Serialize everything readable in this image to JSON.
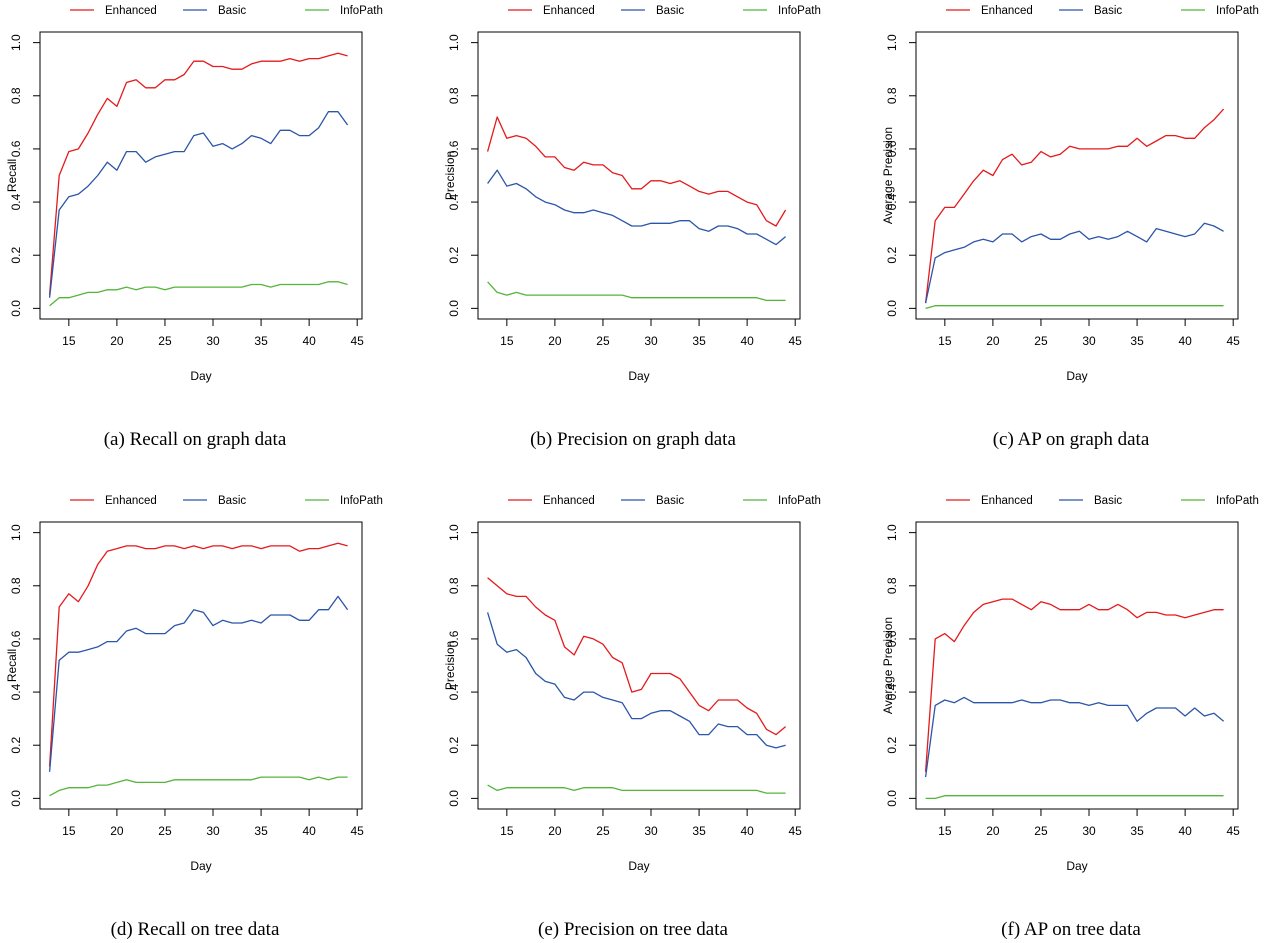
{
  "colors": {
    "Enhanced": "#e41a1c",
    "Basic": "#2b55a8",
    "InfoPath": "#55b43a",
    "axis": "#000000"
  },
  "chart_data": [
    {
      "type": "line",
      "caption": "(a) Recall on graph data",
      "xlabel": "Day",
      "ylabel": "Recall",
      "xlim": [
        13,
        44
      ],
      "ylim": [
        0,
        1
      ],
      "xticks": [
        "15",
        "20",
        "25",
        "30",
        "35",
        "40",
        "45"
      ],
      "yticks": [
        "0.0",
        "0.2",
        "0.4",
        "0.6",
        "0.8",
        "1.0"
      ],
      "legend_position": "top",
      "x": [
        13,
        14,
        15,
        16,
        17,
        18,
        19,
        20,
        21,
        22,
        23,
        24,
        25,
        26,
        27,
        28,
        29,
        30,
        31,
        32,
        33,
        34,
        35,
        36,
        37,
        38,
        39,
        40,
        41,
        42,
        43,
        44
      ],
      "series": [
        {
          "name": "Enhanced",
          "values": [
            0.05,
            0.5,
            0.59,
            0.6,
            0.66,
            0.73,
            0.79,
            0.76,
            0.85,
            0.86,
            0.83,
            0.83,
            0.86,
            0.86,
            0.88,
            0.93,
            0.93,
            0.91,
            0.91,
            0.9,
            0.9,
            0.92,
            0.93,
            0.93,
            0.93,
            0.94,
            0.93,
            0.94,
            0.94,
            0.95,
            0.96,
            0.95
          ]
        },
        {
          "name": "Basic",
          "values": [
            0.04,
            0.37,
            0.42,
            0.43,
            0.46,
            0.5,
            0.55,
            0.52,
            0.59,
            0.59,
            0.55,
            0.57,
            0.58,
            0.59,
            0.59,
            0.65,
            0.66,
            0.61,
            0.62,
            0.6,
            0.62,
            0.65,
            0.64,
            0.62,
            0.67,
            0.67,
            0.65,
            0.65,
            0.68,
            0.74,
            0.74,
            0.69
          ]
        },
        {
          "name": "InfoPath",
          "values": [
            0.01,
            0.04,
            0.04,
            0.05,
            0.06,
            0.06,
            0.07,
            0.07,
            0.08,
            0.07,
            0.08,
            0.08,
            0.07,
            0.08,
            0.08,
            0.08,
            0.08,
            0.08,
            0.08,
            0.08,
            0.08,
            0.09,
            0.09,
            0.08,
            0.09,
            0.09,
            0.09,
            0.09,
            0.09,
            0.1,
            0.1,
            0.09
          ]
        }
      ]
    },
    {
      "type": "line",
      "caption": "(b) Precision on graph data",
      "xlabel": "Day",
      "ylabel": "Precision",
      "xlim": [
        13,
        44
      ],
      "ylim": [
        0,
        1
      ],
      "xticks": [
        "15",
        "20",
        "25",
        "30",
        "35",
        "40",
        "45"
      ],
      "yticks": [
        "0.0",
        "0.2",
        "0.4",
        "0.6",
        "0.8",
        "1.0"
      ],
      "legend_position": "top",
      "x": [
        13,
        14,
        15,
        16,
        17,
        18,
        19,
        20,
        21,
        22,
        23,
        24,
        25,
        26,
        27,
        28,
        29,
        30,
        31,
        32,
        33,
        34,
        35,
        36,
        37,
        38,
        39,
        40,
        41,
        42,
        43,
        44
      ],
      "series": [
        {
          "name": "Enhanced",
          "values": [
            0.59,
            0.72,
            0.64,
            0.65,
            0.64,
            0.61,
            0.57,
            0.57,
            0.53,
            0.52,
            0.55,
            0.54,
            0.54,
            0.51,
            0.5,
            0.45,
            0.45,
            0.48,
            0.48,
            0.47,
            0.48,
            0.46,
            0.44,
            0.43,
            0.44,
            0.44,
            0.42,
            0.4,
            0.39,
            0.33,
            0.31,
            0.37
          ]
        },
        {
          "name": "Basic",
          "values": [
            0.47,
            0.52,
            0.46,
            0.47,
            0.45,
            0.42,
            0.4,
            0.39,
            0.37,
            0.36,
            0.36,
            0.37,
            0.36,
            0.35,
            0.33,
            0.31,
            0.31,
            0.32,
            0.32,
            0.32,
            0.33,
            0.33,
            0.3,
            0.29,
            0.31,
            0.31,
            0.3,
            0.28,
            0.28,
            0.26,
            0.24,
            0.27
          ]
        },
        {
          "name": "InfoPath",
          "values": [
            0.1,
            0.06,
            0.05,
            0.06,
            0.05,
            0.05,
            0.05,
            0.05,
            0.05,
            0.05,
            0.05,
            0.05,
            0.05,
            0.05,
            0.05,
            0.04,
            0.04,
            0.04,
            0.04,
            0.04,
            0.04,
            0.04,
            0.04,
            0.04,
            0.04,
            0.04,
            0.04,
            0.04,
            0.04,
            0.03,
            0.03,
            0.03
          ]
        }
      ]
    },
    {
      "type": "line",
      "caption": "(c) AP on graph data",
      "xlabel": "Day",
      "ylabel": "Average Precision",
      "xlim": [
        13,
        44
      ],
      "ylim": [
        0,
        1
      ],
      "xticks": [
        "15",
        "20",
        "25",
        "30",
        "35",
        "40",
        "45"
      ],
      "yticks": [
        "0.0",
        "0.2",
        "0.4",
        "0.6",
        "0.8",
        "1.0"
      ],
      "legend_position": "top",
      "x": [
        13,
        14,
        15,
        16,
        17,
        18,
        19,
        20,
        21,
        22,
        23,
        24,
        25,
        26,
        27,
        28,
        29,
        30,
        31,
        32,
        33,
        34,
        35,
        36,
        37,
        38,
        39,
        40,
        41,
        42,
        43,
        44
      ],
      "series": [
        {
          "name": "Enhanced",
          "values": [
            0.02,
            0.33,
            0.38,
            0.38,
            0.43,
            0.48,
            0.52,
            0.5,
            0.56,
            0.58,
            0.54,
            0.55,
            0.59,
            0.57,
            0.58,
            0.61,
            0.6,
            0.6,
            0.6,
            0.6,
            0.61,
            0.61,
            0.64,
            0.61,
            0.63,
            0.65,
            0.65,
            0.64,
            0.64,
            0.68,
            0.71,
            0.75
          ]
        },
        {
          "name": "Basic",
          "values": [
            0.02,
            0.19,
            0.21,
            0.22,
            0.23,
            0.25,
            0.26,
            0.25,
            0.28,
            0.28,
            0.25,
            0.27,
            0.28,
            0.26,
            0.26,
            0.28,
            0.29,
            0.26,
            0.27,
            0.26,
            0.27,
            0.29,
            0.27,
            0.25,
            0.3,
            0.29,
            0.28,
            0.27,
            0.28,
            0.32,
            0.31,
            0.29
          ]
        },
        {
          "name": "InfoPath",
          "values": [
            0.0,
            0.01,
            0.01,
            0.01,
            0.01,
            0.01,
            0.01,
            0.01,
            0.01,
            0.01,
            0.01,
            0.01,
            0.01,
            0.01,
            0.01,
            0.01,
            0.01,
            0.01,
            0.01,
            0.01,
            0.01,
            0.01,
            0.01,
            0.01,
            0.01,
            0.01,
            0.01,
            0.01,
            0.01,
            0.01,
            0.01,
            0.01
          ]
        }
      ]
    },
    {
      "type": "line",
      "caption": "(d) Recall on tree data",
      "xlabel": "Day",
      "ylabel": "Recall",
      "xlim": [
        13,
        44
      ],
      "ylim": [
        0,
        1
      ],
      "xticks": [
        "15",
        "20",
        "25",
        "30",
        "35",
        "40",
        "45"
      ],
      "yticks": [
        "0.0",
        "0.2",
        "0.4",
        "0.6",
        "0.8",
        "1.0"
      ],
      "legend_position": "top",
      "x": [
        13,
        14,
        15,
        16,
        17,
        18,
        19,
        20,
        21,
        22,
        23,
        24,
        25,
        26,
        27,
        28,
        29,
        30,
        31,
        32,
        33,
        34,
        35,
        36,
        37,
        38,
        39,
        40,
        41,
        42,
        43,
        44
      ],
      "series": [
        {
          "name": "Enhanced",
          "values": [
            0.12,
            0.72,
            0.77,
            0.74,
            0.8,
            0.88,
            0.93,
            0.94,
            0.95,
            0.95,
            0.94,
            0.94,
            0.95,
            0.95,
            0.94,
            0.95,
            0.94,
            0.95,
            0.95,
            0.94,
            0.95,
            0.95,
            0.94,
            0.95,
            0.95,
            0.95,
            0.93,
            0.94,
            0.94,
            0.95,
            0.96,
            0.95
          ]
        },
        {
          "name": "Basic",
          "values": [
            0.1,
            0.52,
            0.55,
            0.55,
            0.56,
            0.57,
            0.59,
            0.59,
            0.63,
            0.64,
            0.62,
            0.62,
            0.62,
            0.65,
            0.66,
            0.71,
            0.7,
            0.65,
            0.67,
            0.66,
            0.66,
            0.67,
            0.66,
            0.69,
            0.69,
            0.69,
            0.67,
            0.67,
            0.71,
            0.71,
            0.76,
            0.71
          ]
        },
        {
          "name": "InfoPath",
          "values": [
            0.01,
            0.03,
            0.04,
            0.04,
            0.04,
            0.05,
            0.05,
            0.06,
            0.07,
            0.06,
            0.06,
            0.06,
            0.06,
            0.07,
            0.07,
            0.07,
            0.07,
            0.07,
            0.07,
            0.07,
            0.07,
            0.07,
            0.08,
            0.08,
            0.08,
            0.08,
            0.08,
            0.07,
            0.08,
            0.07,
            0.08,
            0.08
          ]
        }
      ]
    },
    {
      "type": "line",
      "caption": "(e) Precision on tree data",
      "xlabel": "Day",
      "ylabel": "Precision",
      "xlim": [
        13,
        44
      ],
      "ylim": [
        0,
        1
      ],
      "xticks": [
        "15",
        "20",
        "25",
        "30",
        "35",
        "40",
        "45"
      ],
      "yticks": [
        "0.0",
        "0.2",
        "0.4",
        "0.6",
        "0.8",
        "1.0"
      ],
      "legend_position": "top",
      "x": [
        13,
        14,
        15,
        16,
        17,
        18,
        19,
        20,
        21,
        22,
        23,
        24,
        25,
        26,
        27,
        28,
        29,
        30,
        31,
        32,
        33,
        34,
        35,
        36,
        37,
        38,
        39,
        40,
        41,
        42,
        43,
        44
      ],
      "series": [
        {
          "name": "Enhanced",
          "values": [
            0.83,
            0.8,
            0.77,
            0.76,
            0.76,
            0.72,
            0.69,
            0.67,
            0.57,
            0.54,
            0.61,
            0.6,
            0.58,
            0.53,
            0.51,
            0.4,
            0.41,
            0.47,
            0.47,
            0.47,
            0.45,
            0.4,
            0.35,
            0.33,
            0.37,
            0.37,
            0.37,
            0.34,
            0.32,
            0.26,
            0.24,
            0.27
          ]
        },
        {
          "name": "Basic",
          "values": [
            0.7,
            0.58,
            0.55,
            0.56,
            0.53,
            0.47,
            0.44,
            0.43,
            0.38,
            0.37,
            0.4,
            0.4,
            0.38,
            0.37,
            0.36,
            0.3,
            0.3,
            0.32,
            0.33,
            0.33,
            0.31,
            0.29,
            0.24,
            0.24,
            0.28,
            0.27,
            0.27,
            0.24,
            0.24,
            0.2,
            0.19,
            0.2
          ]
        },
        {
          "name": "InfoPath",
          "values": [
            0.05,
            0.03,
            0.04,
            0.04,
            0.04,
            0.04,
            0.04,
            0.04,
            0.04,
            0.03,
            0.04,
            0.04,
            0.04,
            0.04,
            0.03,
            0.03,
            0.03,
            0.03,
            0.03,
            0.03,
            0.03,
            0.03,
            0.03,
            0.03,
            0.03,
            0.03,
            0.03,
            0.03,
            0.03,
            0.02,
            0.02,
            0.02
          ]
        }
      ]
    },
    {
      "type": "line",
      "caption": "(f) AP on tree data",
      "xlabel": "Day",
      "ylabel": "Average Precision",
      "xlim": [
        13,
        44
      ],
      "ylim": [
        0,
        1
      ],
      "xticks": [
        "15",
        "20",
        "25",
        "30",
        "35",
        "40",
        "45"
      ],
      "yticks": [
        "0.0",
        "0.2",
        "0.4",
        "0.6",
        "0.8",
        "1.0"
      ],
      "legend_position": "top",
      "x": [
        13,
        14,
        15,
        16,
        17,
        18,
        19,
        20,
        21,
        22,
        23,
        24,
        25,
        26,
        27,
        28,
        29,
        30,
        31,
        32,
        33,
        34,
        35,
        36,
        37,
        38,
        39,
        40,
        41,
        42,
        43,
        44
      ],
      "series": [
        {
          "name": "Enhanced",
          "values": [
            0.1,
            0.6,
            0.62,
            0.59,
            0.65,
            0.7,
            0.73,
            0.74,
            0.75,
            0.75,
            0.73,
            0.71,
            0.74,
            0.73,
            0.71,
            0.71,
            0.71,
            0.73,
            0.71,
            0.71,
            0.73,
            0.71,
            0.68,
            0.7,
            0.7,
            0.69,
            0.69,
            0.68,
            0.69,
            0.7,
            0.71,
            0.71
          ]
        },
        {
          "name": "Basic",
          "values": [
            0.08,
            0.35,
            0.37,
            0.36,
            0.38,
            0.36,
            0.36,
            0.36,
            0.36,
            0.36,
            0.37,
            0.36,
            0.36,
            0.37,
            0.37,
            0.36,
            0.36,
            0.35,
            0.36,
            0.35,
            0.35,
            0.35,
            0.29,
            0.32,
            0.34,
            0.34,
            0.34,
            0.31,
            0.34,
            0.31,
            0.32,
            0.29
          ]
        },
        {
          "name": "InfoPath",
          "values": [
            0.0,
            0.0,
            0.01,
            0.01,
            0.01,
            0.01,
            0.01,
            0.01,
            0.01,
            0.01,
            0.01,
            0.01,
            0.01,
            0.01,
            0.01,
            0.01,
            0.01,
            0.01,
            0.01,
            0.01,
            0.01,
            0.01,
            0.01,
            0.01,
            0.01,
            0.01,
            0.01,
            0.01,
            0.01,
            0.01,
            0.01,
            0.01
          ]
        }
      ]
    }
  ]
}
